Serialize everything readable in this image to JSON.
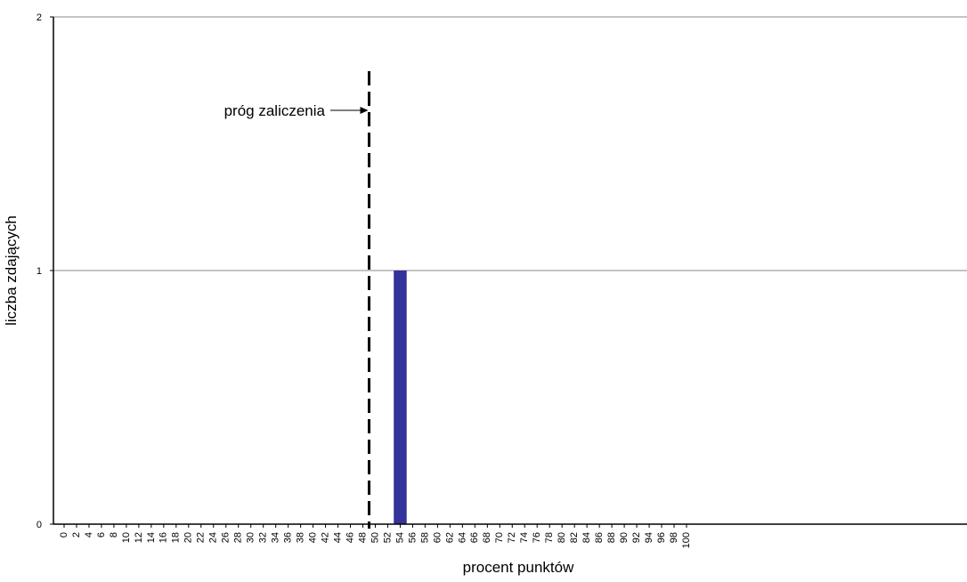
{
  "chart_data": {
    "type": "bar",
    "title": "",
    "xlabel": "procent punktów",
    "ylabel": "liczba zdających",
    "categories": [
      "0",
      "2",
      "4",
      "6",
      "8",
      "10",
      "12",
      "14",
      "16",
      "18",
      "20",
      "22",
      "24",
      "26",
      "28",
      "30",
      "32",
      "34",
      "36",
      "38",
      "40",
      "42",
      "44",
      "46",
      "48",
      "50",
      "52",
      "54",
      "56",
      "58",
      "60",
      "62",
      "64",
      "66",
      "68",
      "70",
      "72",
      "74",
      "76",
      "78",
      "80",
      "82",
      "84",
      "86",
      "88",
      "90",
      "92",
      "94",
      "96",
      "98",
      "100"
    ],
    "values": [
      0,
      0,
      0,
      0,
      0,
      0,
      0,
      0,
      0,
      0,
      0,
      0,
      0,
      0,
      0,
      0,
      0,
      0,
      0,
      0,
      0,
      0,
      0,
      0,
      0,
      0,
      0,
      1,
      0,
      0,
      0,
      0,
      0,
      0,
      0,
      0,
      0,
      0,
      0,
      0,
      0,
      0,
      0,
      0,
      0,
      0,
      0,
      0,
      0,
      0,
      0
    ],
    "ylim": [
      0,
      2
    ],
    "yticks": [
      "0",
      "1",
      "2"
    ],
    "grid": "horizontal",
    "legend": "none",
    "bar_color": "#333399",
    "annotations": [
      {
        "text": "próg zaliczenia",
        "threshold_x": 49,
        "style": "dashed vertical line with arrow"
      }
    ]
  }
}
